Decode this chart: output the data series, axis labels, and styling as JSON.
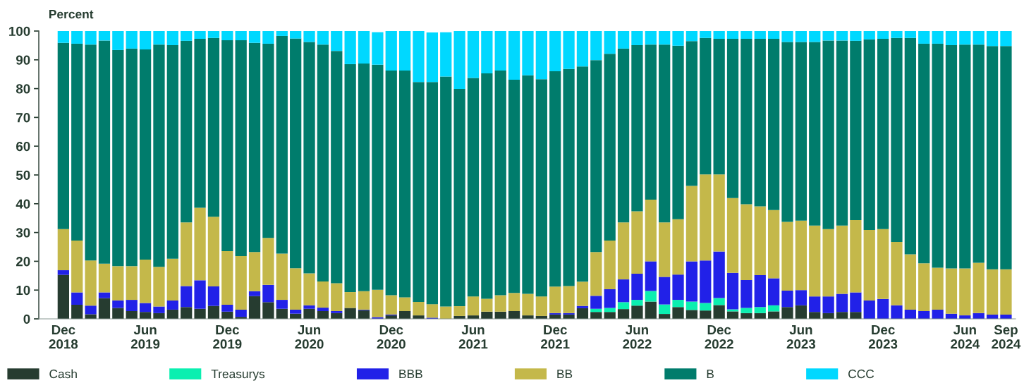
{
  "chart_data": {
    "type": "bar",
    "stacked": true,
    "ylabel": "Percent",
    "categories": [
      "Dec\n2018",
      null,
      null,
      null,
      null,
      null,
      "Jun\n2019",
      null,
      null,
      null,
      null,
      null,
      "Dec\n2019",
      null,
      null,
      null,
      null,
      null,
      "Jun\n2020",
      null,
      null,
      null,
      null,
      null,
      "Dec\n2020",
      null,
      null,
      null,
      null,
      null,
      "Jun\n2021",
      null,
      null,
      null,
      null,
      null,
      "Dec\n2021",
      null,
      null,
      null,
      null,
      null,
      "Jun\n2022",
      null,
      null,
      null,
      null,
      null,
      "Dec\n2022",
      null,
      null,
      null,
      null,
      null,
      "Jun\n2023",
      null,
      null,
      null,
      null,
      null,
      "Dec\n2023",
      null,
      null,
      null,
      null,
      null,
      "Jun\n2024",
      null,
      null,
      "Sep\n2024"
    ],
    "series": [
      {
        "name": "Cash",
        "color": "#263c30",
        "values": [
          15.3,
          4.9,
          1.6,
          7.2,
          3.8,
          2.7,
          2.4,
          2.0,
          3.2,
          4.1,
          3.5,
          4.5,
          2.5,
          0.7,
          7.9,
          5.8,
          3.5,
          1.8,
          3.5,
          2.7,
          2.0,
          3.8,
          3.0,
          null,
          1.2,
          2.7,
          1.2,
          null,
          null,
          1.0,
          1.2,
          2.5,
          2.5,
          2.7,
          1.2,
          1.0,
          1.5,
          1.5,
          3.7,
          2.4,
          2.4,
          3.4,
          4.6,
          6.0,
          1.7,
          4.1,
          3.1,
          2.9,
          4.8,
          2.6,
          2.0,
          2.0,
          2.6,
          4.1,
          4.7,
          2.4,
          2.0,
          2.4,
          2.4,
          0,
          0,
          0,
          0,
          0,
          0,
          0,
          0,
          0,
          0,
          0
        ]
      },
      {
        "name": "Treasurys",
        "color": "#0aefb0",
        "values": [
          0,
          0,
          0,
          0,
          0,
          0,
          0,
          0,
          0,
          0,
          0,
          0,
          0,
          0,
          0,
          0,
          0,
          0,
          0,
          0,
          0,
          0,
          0,
          0,
          0,
          0,
          0,
          0,
          0,
          0,
          0,
          0,
          0,
          0,
          0,
          0,
          0,
          0,
          0,
          1.1,
          1.4,
          2.4,
          2.0,
          3.7,
          3.3,
          2.5,
          2.9,
          2.6,
          2.4,
          0.7,
          1.8,
          2.1,
          2.1,
          0,
          0,
          0,
          0,
          0,
          0,
          0,
          0,
          0,
          0,
          0,
          0,
          0,
          0,
          0,
          0,
          0
        ]
      },
      {
        "name": "BBB",
        "color": "#2121e8",
        "values": [
          1.6,
          4.3,
          3.0,
          2.0,
          2.6,
          3.9,
          3.1,
          2.3,
          3.2,
          7.3,
          9.9,
          6.8,
          2.4,
          2.5,
          1.7,
          6.0,
          3.1,
          1.4,
          1.2,
          1.2,
          0.7,
          0,
          0.2,
          0.6,
          0.3,
          0,
          0,
          0.4,
          0,
          0,
          0,
          0,
          0,
          0,
          0,
          0,
          0.5,
          0.5,
          0.8,
          4.5,
          6.5,
          7.9,
          9.1,
          10.3,
          9.6,
          8.8,
          14.0,
          14.8,
          16.2,
          12.7,
          9.7,
          11.1,
          9.4,
          5.7,
          5.3,
          5.4,
          5.8,
          6.3,
          6.8,
          6.4,
          6.9,
          4.7,
          3.2,
          2.7,
          3.2,
          1.8,
          1.2,
          2.0,
          1.5,
          1.5
        ]
      },
      {
        "name": "BB",
        "color": "#c4b84a",
        "values": [
          14.3,
          18.0,
          15.7,
          10.0,
          11.9,
          11.7,
          15.1,
          13.8,
          14.5,
          22.1,
          25.2,
          24.2,
          18.6,
          18.6,
          13.6,
          16.3,
          16.1,
          14.4,
          11.1,
          9.1,
          9.7,
          5.5,
          6.4,
          9.5,
          6.7,
          4.8,
          4.7,
          4.7,
          4.3,
          3.4,
          6.6,
          4.5,
          5.7,
          6.3,
          7.5,
          6.8,
          9.2,
          9.4,
          8.4,
          15.2,
          16.9,
          19.8,
          21.7,
          21.4,
          18.9,
          19.2,
          26.2,
          29.9,
          26.8,
          26.0,
          26.3,
          23.9,
          23.7,
          23.9,
          24.1,
          24.6,
          23.4,
          23.7,
          25.1,
          24.5,
          24.3,
          22.0,
          19.2,
          16.6,
          14.6,
          15.7,
          16.3,
          17.5,
          15.7,
          15.7
        ]
      },
      {
        "name": "B",
        "color": "#007c6c",
        "values": [
          64.7,
          68.4,
          75.0,
          77.5,
          75.1,
          75.6,
          73.0,
          77.2,
          74.2,
          63.1,
          58.7,
          62.1,
          73.3,
          75.0,
          72.7,
          67.5,
          75.6,
          79.8,
          80.4,
          82.3,
          80.7,
          79.2,
          79.1,
          78.2,
          78.1,
          78.8,
          76.4,
          77.2,
          79.9,
          75.5,
          75.9,
          78.3,
          78.1,
          74.1,
          75.9,
          75.5,
          74.8,
          75.4,
          74.8,
          66.7,
          64.9,
          60.4,
          57.7,
          53.9,
          61.8,
          60.3,
          50.3,
          47.4,
          47.1,
          55.3,
          57.5,
          58.2,
          59.5,
          62.5,
          62.1,
          63.8,
          65.5,
          64.3,
          62.3,
          66.2,
          66.1,
          70.9,
          75.2,
          76.3,
          77.8,
          77.6,
          77.8,
          75.8,
          77.6,
          77.6
        ]
      },
      {
        "name": "CCC",
        "color": "#00d8ff",
        "values": [
          4.1,
          4.4,
          4.7,
          3.3,
          6.6,
          6.1,
          6.4,
          4.7,
          4.9,
          3.4,
          2.7,
          2.4,
          3.2,
          3.2,
          4.1,
          4.4,
          1.7,
          2.6,
          3.8,
          4.7,
          6.9,
          11.5,
          11.3,
          11.3,
          13.7,
          13.7,
          17.7,
          17.2,
          15.4,
          20.1,
          16.3,
          14.7,
          13.7,
          16.9,
          15.4,
          16.7,
          14.0,
          13.2,
          12.3,
          10.1,
          7.9,
          6.1,
          4.9,
          4.7,
          4.7,
          5.1,
          3.5,
          2.4,
          2.7,
          2.7,
          2.7,
          2.7,
          2.7,
          3.8,
          3.8,
          3.8,
          3.3,
          3.3,
          3.4,
          2.9,
          2.7,
          2.4,
          2.4,
          4.4,
          4.4,
          4.9,
          4.7,
          4.7,
          5.2,
          5.2
        ]
      }
    ],
    "ylim": [
      0,
      100
    ],
    "yticks": [
      0,
      10,
      20,
      30,
      40,
      50,
      60,
      70,
      80,
      90,
      100
    ],
    "grid": false,
    "legend": "bottom left"
  }
}
